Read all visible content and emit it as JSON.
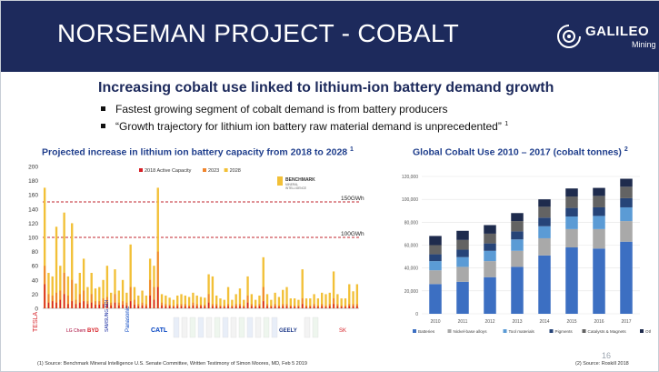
{
  "header": {
    "title": "NORSEMAN PROJECT - COBALT",
    "logo_text": "GALILEO",
    "logo_sub": "Mining",
    "logo_icon": "galileo-logo-icon"
  },
  "subtitle": "Increasing cobalt use linked to lithium-ion battery demand growth",
  "bullets": [
    {
      "text": "Fastest growing segment of cobalt demand is from battery producers",
      "sup": ""
    },
    {
      "text": "“Growth trajectory for lithium ion battery raw material demand is unprecedented”",
      "sup": "1"
    }
  ],
  "colors": {
    "header_bg": "#1d2a5c",
    "title_blue": "#1f3e8c",
    "active_2018": "#d61f26",
    "y2023": "#f0852d",
    "y2028": "#f2c037",
    "reference_line": "#c0262c"
  },
  "chart_data": [
    {
      "type": "bar",
      "title": "Projected increase in lithium ion battery capacity from 2018 to 2028",
      "title_sup": "1",
      "ylim": [
        0,
        200
      ],
      "yticks": [
        0,
        20,
        40,
        60,
        80,
        100,
        120,
        140,
        160,
        180,
        200
      ],
      "legend": [
        "2018 Active Capacity",
        "2023",
        "2028"
      ],
      "legend_position": "top",
      "grid": false,
      "reference_lines": [
        {
          "value": 150,
          "label": "150GWh"
        },
        {
          "value": 100,
          "label": "100GWh"
        }
      ],
      "watermark": {
        "name": "BENCHMARK",
        "sub1": "MINERAL",
        "sub2": "INTELLIGENCE"
      },
      "company_labels": [
        "TESLA",
        "LG Chem",
        "BYD",
        "SAMSUNG SDI",
        "Panasonic",
        "CATL",
        "GEELY",
        "SK"
      ],
      "series": [
        {
          "name": "2018 Active Capacity",
          "values": [
            34,
            8,
            10,
            8,
            12,
            20,
            6,
            10,
            6,
            8,
            10,
            6,
            8,
            5,
            5,
            6,
            6,
            4,
            8,
            4,
            5,
            4,
            10,
            5,
            3,
            4,
            3,
            18,
            12,
            30,
            4,
            3,
            3,
            2,
            3,
            3,
            3,
            2,
            4,
            3,
            3,
            3,
            8,
            3,
            3,
            2,
            2,
            3,
            2,
            3,
            3,
            2,
            8,
            3,
            2,
            3,
            10,
            3,
            2,
            3,
            2,
            3,
            3,
            2,
            2,
            2,
            6,
            2,
            2,
            3,
            2,
            3,
            2,
            3,
            6,
            3,
            2,
            2,
            3,
            3,
            3
          ]
        },
        {
          "name": "2023",
          "values": [
            60,
            20,
            18,
            22,
            25,
            50,
            18,
            40,
            12,
            20,
            25,
            10,
            20,
            10,
            10,
            14,
            16,
            8,
            20,
            8,
            10,
            8,
            30,
            12,
            6,
            8,
            6,
            40,
            30,
            80,
            8,
            6,
            5,
            4,
            6,
            6,
            6,
            4,
            8,
            6,
            5,
            5,
            20,
            6,
            6,
            4,
            4,
            6,
            4,
            6,
            6,
            4,
            18,
            6,
            4,
            6,
            30,
            6,
            4,
            6,
            4,
            6,
            6,
            4,
            4,
            4,
            14,
            4,
            4,
            6,
            4,
            6,
            4,
            6,
            14,
            6,
            4,
            4,
            6,
            6,
            6
          ]
        },
        {
          "name": "2028",
          "values": [
            170,
            50,
            45,
            115,
            60,
            135,
            45,
            120,
            35,
            50,
            70,
            30,
            50,
            28,
            30,
            40,
            60,
            22,
            55,
            25,
            40,
            22,
            90,
            30,
            18,
            25,
            18,
            70,
            60,
            170,
            20,
            18,
            15,
            12,
            18,
            20,
            18,
            16,
            22,
            18,
            16,
            15,
            48,
            45,
            18,
            14,
            12,
            30,
            12,
            20,
            28,
            12,
            45,
            20,
            12,
            18,
            72,
            20,
            12,
            22,
            16,
            26,
            30,
            14,
            14,
            12,
            55,
            14,
            14,
            20,
            14,
            22,
            20,
            22,
            52,
            20,
            14,
            14,
            34,
            24,
            34
          ]
        }
      ]
    },
    {
      "type": "bar",
      "stacked": true,
      "title": "Global Cobalt Use 2010 – 2017  (cobalt tonnes)",
      "title_sup": "2",
      "ylim": [
        0,
        120000
      ],
      "yticks": [
        0,
        20000,
        40000,
        60000,
        80000,
        100000,
        120000
      ],
      "ytick_labels": [
        "0",
        "20,000",
        "40,000",
        "60,000",
        "80,000",
        "100,000",
        "120,000"
      ],
      "categories": [
        "2010",
        "2011",
        "2012",
        "2013",
        "2014",
        "2015",
        "2016",
        "2017"
      ],
      "legend_position": "bottom",
      "grid": true,
      "series": [
        {
          "name": "Batteries",
          "color": "#3c6fc2",
          "values": [
            26000,
            28000,
            32000,
            41000,
            51000,
            58000,
            57000,
            63000
          ]
        },
        {
          "name": "Nickel-base alloys",
          "color": "#a9a9a9",
          "values": [
            12000,
            13000,
            14000,
            14000,
            15000,
            16000,
            17000,
            18000
          ]
        },
        {
          "name": "Tool materials",
          "color": "#5b9bd5",
          "values": [
            8000,
            8500,
            9000,
            10000,
            10500,
            11000,
            11500,
            12000
          ]
        },
        {
          "name": "Pigments",
          "color": "#264478",
          "values": [
            6000,
            6500,
            6500,
            7000,
            7500,
            7500,
            7500,
            8000
          ]
        },
        {
          "name": "Catalysts & Magnets",
          "color": "#636363",
          "values": [
            8000,
            8500,
            8500,
            9000,
            9500,
            10000,
            10000,
            10000
          ]
        },
        {
          "name": "Other",
          "color": "#1e2b4d",
          "values": [
            8000,
            8000,
            7500,
            7000,
            6500,
            7000,
            7000,
            7000
          ]
        }
      ]
    }
  ],
  "footnotes": {
    "left": "(1) Source:  Benchmark Mineral Intelligence U.S. Senate Committee,  Written Testimony of Simon Moores, MD, Feb 5 2019",
    "right": "(2) Source:  Roskill 2018"
  },
  "page_number": "16"
}
